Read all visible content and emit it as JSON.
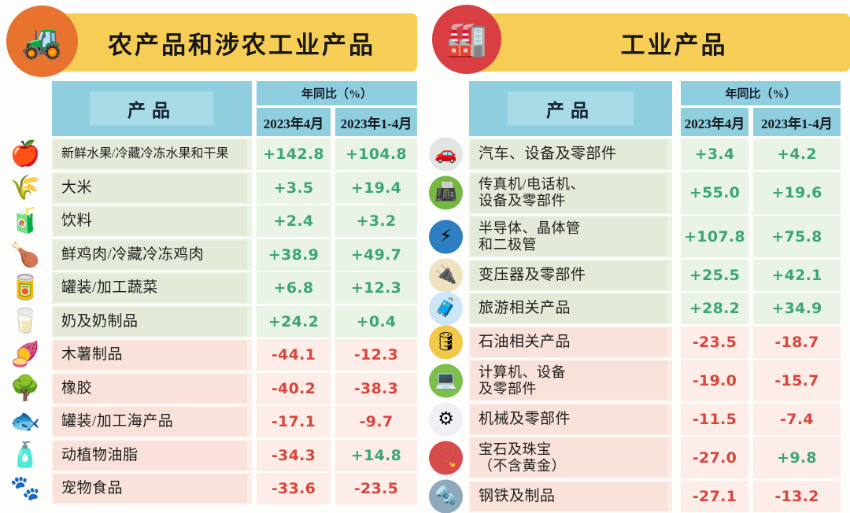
{
  "colors": {
    "band_yellow": "#f6ce55",
    "header_blue": "#8fcedf",
    "header_blue_inlay": "#a8dbe8",
    "row_green": "#e9f3e6",
    "patch_green": "#e3ebd8",
    "row_pink": "#fcede8",
    "patch_pink": "#f8e2d9",
    "positive_green": "#3da578",
    "negative_red": "#d8453c",
    "agri_circle_orange": "#e8732e",
    "industry_circle_red": "#d93e43"
  },
  "left_panel": {
    "title": "农产品和涉农工业产品",
    "header_icon": {
      "name": "tractor-farm-icon",
      "glyph": "🚜"
    },
    "table": {
      "product_header": "产品",
      "yoy_header": "年同比（%）",
      "col_apr": "2023年4月",
      "col_jan_apr": "2023年1-4月",
      "rows": [
        {
          "name": "新鲜水果/冷藏冷冻水果和干果",
          "icon": "🍎",
          "apr": "+142.8",
          "jan_apr": "+104.8",
          "tone": "up"
        },
        {
          "name": "大米",
          "icon": "🌾",
          "apr": "+3.5",
          "jan_apr": "+19.4",
          "tone": "up"
        },
        {
          "name": "饮料",
          "icon": "🧃",
          "apr": "+2.4",
          "jan_apr": "+3.2",
          "tone": "up"
        },
        {
          "name": "鲜鸡肉/冷藏冷冻鸡肉",
          "icon": "🍗",
          "apr": "+38.9",
          "jan_apr": "+49.7",
          "tone": "up"
        },
        {
          "name": "罐装/加工蔬菜",
          "icon": "🥫",
          "apr": "+6.8",
          "jan_apr": "+12.3",
          "tone": "up"
        },
        {
          "name": "奶及奶制品",
          "icon": "🥛",
          "apr": "+24.2",
          "jan_apr": "+0.4",
          "tone": "up"
        },
        {
          "name": "木薯制品",
          "icon": "🍠",
          "apr": "-44.1",
          "jan_apr": "-12.3",
          "tone": "down"
        },
        {
          "name": "橡胶",
          "icon": "🌳",
          "apr": "-40.2",
          "jan_apr": "-38.3",
          "tone": "down"
        },
        {
          "name": "罐装/加工海产品",
          "icon": "🐟",
          "apr": "-17.1",
          "jan_apr": "-9.7",
          "tone": "down"
        },
        {
          "name": "动植物油脂",
          "icon": "🧴",
          "apr": "-34.3",
          "jan_apr": "+14.8",
          "tone": "down"
        },
        {
          "name": "宠物食品",
          "icon": "🐾",
          "apr": "-33.6",
          "jan_apr": "-23.5",
          "tone": "down"
        }
      ]
    }
  },
  "right_panel": {
    "title": "工业产品",
    "header_icon": {
      "name": "factory-icon",
      "glyph": "🏭"
    },
    "table": {
      "product_header": "产品",
      "yoy_header": "年同比（%）",
      "col_apr": "2023年4月",
      "col_jan_apr": "2023年1-4月",
      "rows": [
        {
          "name": "汽车、设备及零部件",
          "icon": "🚗",
          "icon_style": "background:#e3e4e4",
          "apr": "+3.4",
          "jan_apr": "+4.2",
          "tone": "up"
        },
        {
          "name": "传真机/电话机、\n设备及零部件",
          "icon": "📠",
          "icon_style": "background:#74b843",
          "apr": "+55.0",
          "jan_apr": "+19.6",
          "tone": "up"
        },
        {
          "name": "半导体、晶体管\n和二极管",
          "icon": "⚡",
          "icon_style": "background:#2d7fc1",
          "apr": "+107.8",
          "jan_apr": "+75.8",
          "tone": "up"
        },
        {
          "name": "变压器及零部件",
          "icon": "🔌",
          "icon_style": "background:#f0e2c0",
          "apr": "+25.5",
          "jan_apr": "+42.1",
          "tone": "up"
        },
        {
          "name": "旅游相关产品",
          "icon": "🧳",
          "icon_style": "background:#cde6f5",
          "apr": "+28.2",
          "jan_apr": "+34.9",
          "tone": "up"
        },
        {
          "name": "石油相关产品",
          "icon": "🛢",
          "icon_style": "background:#f0c94a",
          "apr": "-23.5",
          "jan_apr": "-18.7",
          "tone": "down"
        },
        {
          "name": "计算机、设备\n及零部件",
          "icon": "💻",
          "icon_style": "background:#7cbf4c",
          "apr": "-19.0",
          "jan_apr": "-15.7",
          "tone": "down"
        },
        {
          "name": "机械及零部件",
          "icon": "⚙",
          "icon_style": "background:#efeff5",
          "apr": "-11.5",
          "jan_apr": "-7.4",
          "tone": "down"
        },
        {
          "name": "宝石及珠宝\n（不含黄金）",
          "icon": "📿",
          "icon_style": "background:#d94a4e",
          "apr": "-27.0",
          "jan_apr": "+9.8",
          "tone": "down"
        },
        {
          "name": "钢铁及制品",
          "icon": "🔩",
          "icon_style": "background:#8fa8bc",
          "apr": "-27.1",
          "jan_apr": "-13.2",
          "tone": "down"
        }
      ]
    }
  },
  "chart_data": [
    {
      "type": "table",
      "title": "农产品和涉农工业产品",
      "columns": [
        "产品",
        "年同比(%) 2023年4月",
        "年同比(%) 2023年1-4月"
      ],
      "rows": [
        [
          "新鲜水果/冷藏冷冻水果和干果",
          142.8,
          104.8
        ],
        [
          "大米",
          3.5,
          19.4
        ],
        [
          "饮料",
          2.4,
          3.2
        ],
        [
          "鲜鸡肉/冷藏冷冻鸡肉",
          38.9,
          49.7
        ],
        [
          "罐装/加工蔬菜",
          6.8,
          12.3
        ],
        [
          "奶及奶制品",
          24.2,
          0.4
        ],
        [
          "木薯制品",
          -44.1,
          -12.3
        ],
        [
          "橡胶",
          -40.2,
          -38.3
        ],
        [
          "罐装/加工海产品",
          -17.1,
          -9.7
        ],
        [
          "动植物油脂",
          -34.3,
          14.8
        ],
        [
          "宠物食品",
          -33.6,
          -23.5
        ]
      ]
    },
    {
      "type": "table",
      "title": "工业产品",
      "columns": [
        "产品",
        "年同比(%) 2023年4月",
        "年同比(%) 2023年1-4月"
      ],
      "rows": [
        [
          "汽车、设备及零部件",
          3.4,
          4.2
        ],
        [
          "传真机/电话机、设备及零部件",
          55.0,
          19.6
        ],
        [
          "半导体、晶体管和二极管",
          107.8,
          75.8
        ],
        [
          "变压器及零部件",
          25.5,
          42.1
        ],
        [
          "旅游相关产品",
          28.2,
          34.9
        ],
        [
          "石油相关产品",
          -23.5,
          -18.7
        ],
        [
          "计算机、设备及零部件",
          -19.0,
          -15.7
        ],
        [
          "机械及零部件",
          -11.5,
          -7.4
        ],
        [
          "宝石及珠宝（不含黄金）",
          -27.0,
          9.8
        ],
        [
          "钢铁及制品",
          -27.1,
          -13.2
        ]
      ]
    }
  ]
}
